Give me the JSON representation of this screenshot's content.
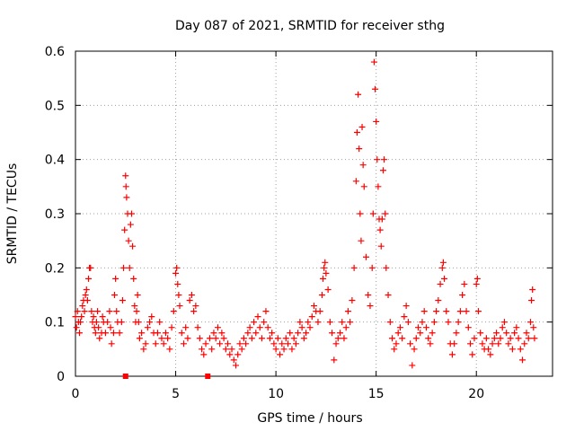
{
  "chart_data": {
    "type": "scatter",
    "title": "Day 087 of 2021, SRMTID for receiver sthg",
    "xlabel": "GPS time / hours",
    "ylabel": "SRMTID / TECUs",
    "xlim": [
      0,
      23.8
    ],
    "ylim": [
      0,
      0.6
    ],
    "xticks": [
      0,
      5,
      10,
      15,
      20
    ],
    "xtick_labels": [
      "0",
      "5",
      "10",
      "15",
      "20"
    ],
    "yticks": [
      0,
      0.1,
      0.2,
      0.3,
      0.4,
      0.5,
      0.6
    ],
    "ytick_labels": [
      "0",
      "0.1",
      "0.2",
      "0.3",
      "0.4",
      "0.5",
      "0.6"
    ],
    "grid": true,
    "marker": "+",
    "series": [
      {
        "name": "SRMTID",
        "color": "#ff0000",
        "points": [
          [
            0.0,
            0.11
          ],
          [
            0.05,
            0.09
          ],
          [
            0.1,
            0.12
          ],
          [
            0.15,
            0.1
          ],
          [
            0.2,
            0.08
          ],
          [
            0.25,
            0.1
          ],
          [
            0.3,
            0.11
          ],
          [
            0.35,
            0.13
          ],
          [
            0.4,
            0.14
          ],
          [
            0.45,
            0.12
          ],
          [
            0.5,
            0.15
          ],
          [
            0.55,
            0.16
          ],
          [
            0.6,
            0.14
          ],
          [
            0.65,
            0.18
          ],
          [
            0.7,
            0.2
          ],
          [
            0.75,
            0.2
          ],
          [
            0.8,
            0.12
          ],
          [
            0.85,
            0.1
          ],
          [
            0.9,
            0.11
          ],
          [
            0.95,
            0.09
          ],
          [
            1.0,
            0.08
          ],
          [
            1.05,
            0.1
          ],
          [
            1.1,
            0.12
          ],
          [
            1.15,
            0.09
          ],
          [
            1.2,
            0.07
          ],
          [
            1.3,
            0.08
          ],
          [
            1.35,
            0.11
          ],
          [
            1.4,
            0.1
          ],
          [
            1.5,
            0.08
          ],
          [
            1.6,
            0.1
          ],
          [
            1.7,
            0.12
          ],
          [
            1.75,
            0.09
          ],
          [
            1.8,
            0.06
          ],
          [
            1.9,
            0.08
          ],
          [
            1.95,
            0.15
          ],
          [
            2.0,
            0.18
          ],
          [
            2.05,
            0.12
          ],
          [
            2.1,
            0.1
          ],
          [
            2.2,
            0.08
          ],
          [
            2.3,
            0.1
          ],
          [
            2.35,
            0.14
          ],
          [
            2.4,
            0.2
          ],
          [
            2.45,
            0.27
          ],
          [
            2.5,
            0.37
          ],
          [
            2.52,
            0.35
          ],
          [
            2.55,
            0.33
          ],
          [
            2.6,
            0.3
          ],
          [
            2.65,
            0.25
          ],
          [
            2.7,
            0.2
          ],
          [
            2.75,
            0.28
          ],
          [
            2.8,
            0.3
          ],
          [
            2.85,
            0.24
          ],
          [
            2.9,
            0.18
          ],
          [
            2.95,
            0.13
          ],
          [
            3.0,
            0.1
          ],
          [
            3.05,
            0.12
          ],
          [
            3.1,
            0.15
          ],
          [
            3.15,
            0.1
          ],
          [
            3.2,
            0.07
          ],
          [
            3.3,
            0.08
          ],
          [
            3.4,
            0.05
          ],
          [
            3.5,
            0.06
          ],
          [
            3.6,
            0.09
          ],
          [
            3.7,
            0.1
          ],
          [
            3.8,
            0.11
          ],
          [
            3.9,
            0.08
          ],
          [
            4.0,
            0.06
          ],
          [
            4.1,
            0.08
          ],
          [
            4.2,
            0.1
          ],
          [
            4.3,
            0.07
          ],
          [
            4.4,
            0.06
          ],
          [
            4.5,
            0.08
          ],
          [
            4.6,
            0.07
          ],
          [
            4.7,
            0.05
          ],
          [
            4.8,
            0.09
          ],
          [
            4.9,
            0.12
          ],
          [
            5.0,
            0.19
          ],
          [
            5.05,
            0.2
          ],
          [
            5.1,
            0.17
          ],
          [
            5.15,
            0.15
          ],
          [
            5.2,
            0.13
          ],
          [
            5.3,
            0.08
          ],
          [
            5.4,
            0.06
          ],
          [
            5.5,
            0.09
          ],
          [
            5.6,
            0.07
          ],
          [
            5.7,
            0.14
          ],
          [
            5.8,
            0.15
          ],
          [
            5.9,
            0.12
          ],
          [
            6.0,
            0.13
          ],
          [
            6.1,
            0.09
          ],
          [
            6.2,
            0.07
          ],
          [
            6.3,
            0.05
          ],
          [
            6.4,
            0.04
          ],
          [
            6.5,
            0.06
          ],
          [
            6.7,
            0.07
          ],
          [
            6.8,
            0.05
          ],
          [
            6.9,
            0.08
          ],
          [
            7.0,
            0.07
          ],
          [
            7.1,
            0.09
          ],
          [
            7.2,
            0.06
          ],
          [
            7.3,
            0.08
          ],
          [
            7.4,
            0.07
          ],
          [
            7.5,
            0.05
          ],
          [
            7.6,
            0.06
          ],
          [
            7.7,
            0.04
          ],
          [
            7.8,
            0.05
          ],
          [
            7.9,
            0.03
          ],
          [
            8.0,
            0.02
          ],
          [
            8.1,
            0.04
          ],
          [
            8.2,
            0.06
          ],
          [
            8.3,
            0.05
          ],
          [
            8.4,
            0.07
          ],
          [
            8.5,
            0.06
          ],
          [
            8.6,
            0.08
          ],
          [
            8.7,
            0.09
          ],
          [
            8.8,
            0.07
          ],
          [
            8.9,
            0.1
          ],
          [
            9.0,
            0.08
          ],
          [
            9.1,
            0.11
          ],
          [
            9.2,
            0.09
          ],
          [
            9.3,
            0.07
          ],
          [
            9.4,
            0.1
          ],
          [
            9.5,
            0.12
          ],
          [
            9.6,
            0.09
          ],
          [
            9.7,
            0.07
          ],
          [
            9.8,
            0.08
          ],
          [
            9.9,
            0.06
          ],
          [
            10.0,
            0.05
          ],
          [
            10.1,
            0.07
          ],
          [
            10.2,
            0.04
          ],
          [
            10.3,
            0.06
          ],
          [
            10.4,
            0.05
          ],
          [
            10.5,
            0.07
          ],
          [
            10.6,
            0.06
          ],
          [
            10.7,
            0.08
          ],
          [
            10.8,
            0.05
          ],
          [
            10.9,
            0.07
          ],
          [
            11.0,
            0.06
          ],
          [
            11.1,
            0.08
          ],
          [
            11.2,
            0.1
          ],
          [
            11.3,
            0.09
          ],
          [
            11.4,
            0.07
          ],
          [
            11.5,
            0.08
          ],
          [
            11.6,
            0.1
          ],
          [
            11.7,
            0.09
          ],
          [
            11.8,
            0.11
          ],
          [
            11.9,
            0.13
          ],
          [
            12.0,
            0.12
          ],
          [
            12.1,
            0.1
          ],
          [
            12.2,
            0.12
          ],
          [
            12.3,
            0.15
          ],
          [
            12.35,
            0.18
          ],
          [
            12.4,
            0.2
          ],
          [
            12.45,
            0.21
          ],
          [
            12.5,
            0.19
          ],
          [
            12.6,
            0.16
          ],
          [
            12.7,
            0.1
          ],
          [
            12.8,
            0.08
          ],
          [
            12.9,
            0.03
          ],
          [
            13.0,
            0.06
          ],
          [
            13.1,
            0.07
          ],
          [
            13.2,
            0.08
          ],
          [
            13.3,
            0.1
          ],
          [
            13.4,
            0.07
          ],
          [
            13.5,
            0.09
          ],
          [
            13.6,
            0.12
          ],
          [
            13.7,
            0.1
          ],
          [
            13.8,
            0.14
          ],
          [
            13.9,
            0.2
          ],
          [
            14.0,
            0.36
          ],
          [
            14.05,
            0.45
          ],
          [
            14.1,
            0.52
          ],
          [
            14.15,
            0.42
          ],
          [
            14.2,
            0.3
          ],
          [
            14.25,
            0.25
          ],
          [
            14.3,
            0.46
          ],
          [
            14.35,
            0.39
          ],
          [
            14.4,
            0.35
          ],
          [
            14.5,
            0.22
          ],
          [
            14.6,
            0.15
          ],
          [
            14.7,
            0.13
          ],
          [
            14.8,
            0.2
          ],
          [
            14.85,
            0.3
          ],
          [
            14.9,
            0.58
          ],
          [
            14.95,
            0.53
          ],
          [
            15.0,
            0.47
          ],
          [
            15.05,
            0.4
          ],
          [
            15.1,
            0.35
          ],
          [
            15.15,
            0.29
          ],
          [
            15.2,
            0.27
          ],
          [
            15.25,
            0.24
          ],
          [
            15.3,
            0.29
          ],
          [
            15.35,
            0.38
          ],
          [
            15.4,
            0.4
          ],
          [
            15.45,
            0.3
          ],
          [
            15.5,
            0.2
          ],
          [
            15.6,
            0.15
          ],
          [
            15.7,
            0.1
          ],
          [
            15.8,
            0.07
          ],
          [
            15.9,
            0.05
          ],
          [
            16.0,
            0.06
          ],
          [
            16.1,
            0.08
          ],
          [
            16.2,
            0.09
          ],
          [
            16.3,
            0.07
          ],
          [
            16.4,
            0.11
          ],
          [
            16.5,
            0.13
          ],
          [
            16.6,
            0.1
          ],
          [
            16.7,
            0.06
          ],
          [
            16.8,
            0.02
          ],
          [
            16.9,
            0.05
          ],
          [
            17.0,
            0.07
          ],
          [
            17.1,
            0.09
          ],
          [
            17.2,
            0.08
          ],
          [
            17.3,
            0.1
          ],
          [
            17.4,
            0.12
          ],
          [
            17.5,
            0.09
          ],
          [
            17.6,
            0.07
          ],
          [
            17.7,
            0.06
          ],
          [
            17.8,
            0.08
          ],
          [
            17.9,
            0.1
          ],
          [
            18.0,
            0.12
          ],
          [
            18.1,
            0.14
          ],
          [
            18.2,
            0.17
          ],
          [
            18.3,
            0.2
          ],
          [
            18.35,
            0.21
          ],
          [
            18.4,
            0.18
          ],
          [
            18.5,
            0.12
          ],
          [
            18.6,
            0.1
          ],
          [
            18.7,
            0.06
          ],
          [
            18.8,
            0.04
          ],
          [
            18.9,
            0.06
          ],
          [
            19.0,
            0.08
          ],
          [
            19.1,
            0.1
          ],
          [
            19.2,
            0.12
          ],
          [
            19.3,
            0.15
          ],
          [
            19.4,
            0.17
          ],
          [
            19.5,
            0.12
          ],
          [
            19.6,
            0.09
          ],
          [
            19.7,
            0.06
          ],
          [
            19.8,
            0.04
          ],
          [
            19.9,
            0.07
          ],
          [
            20.0,
            0.17
          ],
          [
            20.05,
            0.18
          ],
          [
            20.1,
            0.12
          ],
          [
            20.2,
            0.08
          ],
          [
            20.3,
            0.06
          ],
          [
            20.4,
            0.05
          ],
          [
            20.5,
            0.07
          ],
          [
            20.6,
            0.05
          ],
          [
            20.7,
            0.04
          ],
          [
            20.8,
            0.06
          ],
          [
            20.9,
            0.07
          ],
          [
            21.0,
            0.08
          ],
          [
            21.1,
            0.06
          ],
          [
            21.2,
            0.07
          ],
          [
            21.3,
            0.09
          ],
          [
            21.4,
            0.1
          ],
          [
            21.5,
            0.08
          ],
          [
            21.6,
            0.06
          ],
          [
            21.7,
            0.07
          ],
          [
            21.8,
            0.05
          ],
          [
            21.9,
            0.08
          ],
          [
            22.0,
            0.09
          ],
          [
            22.1,
            0.07
          ],
          [
            22.2,
            0.05
          ],
          [
            22.3,
            0.03
          ],
          [
            22.4,
            0.06
          ],
          [
            22.5,
            0.08
          ],
          [
            22.6,
            0.07
          ],
          [
            22.7,
            0.1
          ],
          [
            22.75,
            0.14
          ],
          [
            22.8,
            0.16
          ],
          [
            22.85,
            0.09
          ],
          [
            22.9,
            0.07
          ]
        ]
      },
      {
        "name": "zero markers",
        "color": "#ff0000",
        "marker": "square",
        "points": [
          [
            2.5,
            0.0
          ],
          [
            6.6,
            0.0
          ]
        ]
      }
    ]
  }
}
